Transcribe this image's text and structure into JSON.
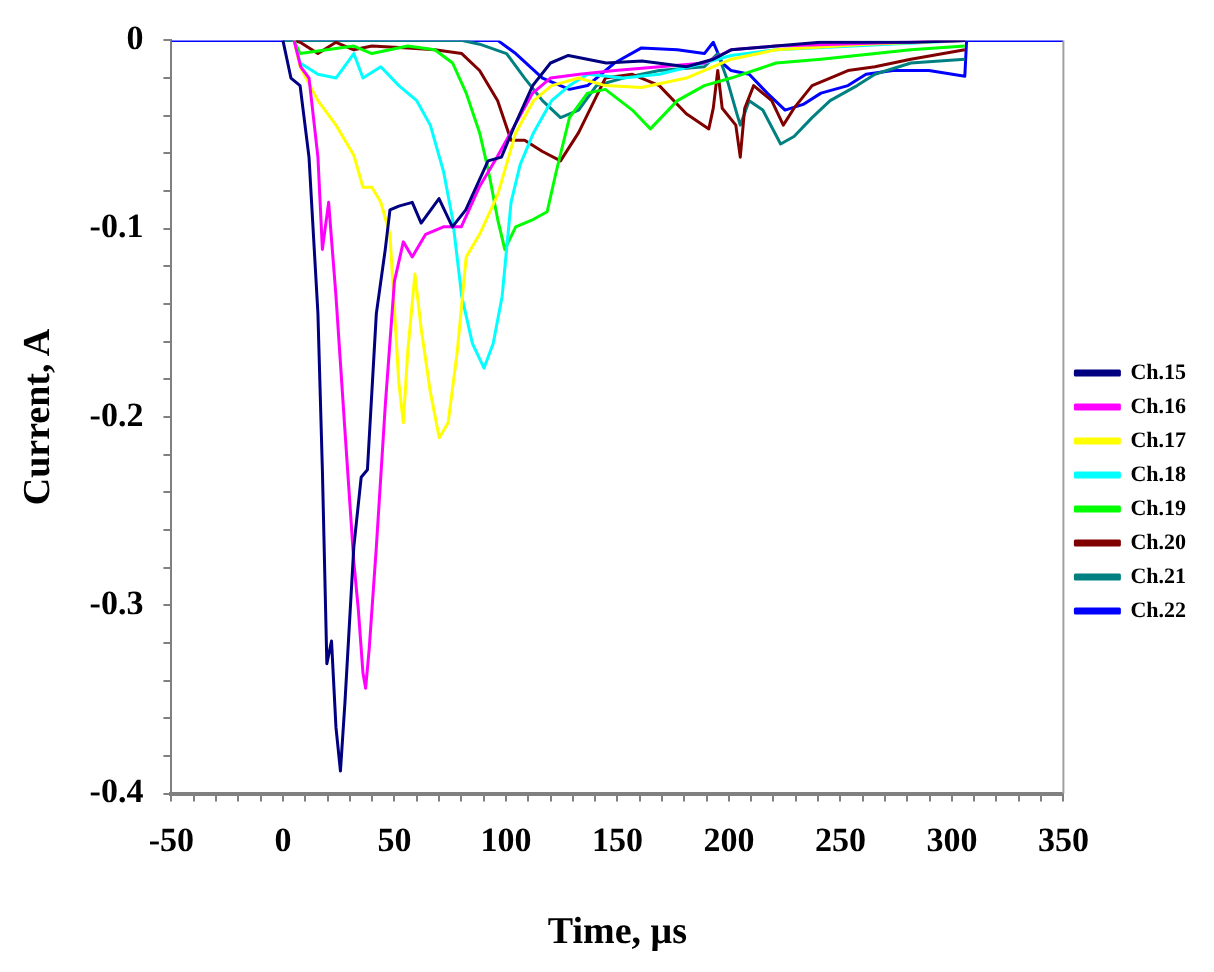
{
  "chart_data": {
    "type": "line",
    "xlabel": "Time, μs",
    "ylabel": "Current, A",
    "xlim": [
      -50,
      350
    ],
    "ylim": [
      -0.4,
      0
    ],
    "xticks": [
      -50,
      {
        "value": -40,
        "label": null
      },
      {
        "value": -30,
        "label": null
      },
      {
        "value": -20,
        "label": null
      },
      {
        "value": -10,
        "label": null
      },
      0,
      {
        "value": 10,
        "label": null
      },
      {
        "value": 20,
        "label": null
      },
      {
        "value": 30,
        "label": null
      },
      {
        "value": 40,
        "label": null
      },
      50,
      {
        "value": 60,
        "label": null
      },
      {
        "value": 70,
        "label": null
      },
      {
        "value": 80,
        "label": null
      },
      {
        "value": 90,
        "label": null
      },
      100,
      {
        "value": 110,
        "label": null
      },
      {
        "value": 120,
        "label": null
      },
      {
        "value": 130,
        "label": null
      },
      {
        "value": 140,
        "label": null
      },
      150,
      {
        "value": 160,
        "label": null
      },
      {
        "value": 170,
        "label": null
      },
      {
        "value": 180,
        "label": null
      },
      {
        "value": 190,
        "label": null
      },
      200,
      {
        "value": 210,
        "label": null
      },
      {
        "value": 220,
        "label": null
      },
      {
        "value": 230,
        "label": null
      },
      {
        "value": 240,
        "label": null
      },
      250,
      {
        "value": 260,
        "label": null
      },
      {
        "value": 270,
        "label": null
      },
      {
        "value": 280,
        "label": null
      },
      {
        "value": 290,
        "label": null
      },
      300,
      {
        "value": 310,
        "label": null
      },
      {
        "value": 320,
        "label": null
      },
      {
        "value": 330,
        "label": null
      },
      {
        "value": 340,
        "label": null
      },
      350
    ],
    "yticks": [
      -0.4,
      {
        "value": -0.38,
        "label": null
      },
      {
        "value": -0.36,
        "label": null
      },
      {
        "value": -0.34,
        "label": null
      },
      {
        "value": -0.32,
        "label": null
      },
      -0.3,
      {
        "value": -0.28,
        "label": null
      },
      {
        "value": -0.26,
        "label": null
      },
      {
        "value": -0.24,
        "label": null
      },
      {
        "value": -0.22,
        "label": null
      },
      -0.2,
      {
        "value": -0.18,
        "label": null
      },
      {
        "value": -0.16,
        "label": null
      },
      {
        "value": -0.14,
        "label": null
      },
      {
        "value": -0.12,
        "label": null
      },
      -0.1,
      {
        "value": -0.08,
        "label": null
      },
      {
        "value": -0.06,
        "label": null
      },
      {
        "value": -0.04,
        "label": null
      },
      {
        "value": -0.02,
        "label": null
      },
      0
    ],
    "grid": false,
    "legend": "right",
    "marker": "none",
    "line_style": "solid",
    "series": [
      {
        "name": "Ch.15",
        "color": "#000080",
        "x": [
          0,
          3.6,
          7.7,
          11.7,
          15.7,
          17.7,
          19.7,
          21.8,
          23.8,
          25.8,
          27.8,
          31.8,
          35.1,
          37.9,
          41.9,
          45.9,
          48,
          52,
          58,
          62,
          70,
          76,
          82,
          92,
          98,
          104,
          112,
          120,
          128,
          145,
          161,
          181,
          193,
          201,
          221,
          241,
          282,
          306
        ],
        "values": [
          0,
          -0.02,
          -0.024,
          -0.062,
          -0.145,
          -0.228,
          -0.331,
          -0.319,
          -0.365,
          -0.388,
          -0.352,
          -0.269,
          -0.232,
          -0.228,
          -0.145,
          -0.111,
          -0.09,
          -0.088,
          -0.086,
          -0.097,
          -0.084,
          -0.099,
          -0.09,
          -0.064,
          -0.062,
          -0.045,
          -0.024,
          -0.012,
          -0.008,
          -0.012,
          -0.011,
          -0.014,
          -0.01,
          -0.005,
          -0.003,
          -0.001,
          -0.001,
          0
        ]
      },
      {
        "name": "Ch.16",
        "color": "#ff00ff",
        "x": [
          5,
          8,
          11.7,
          15.7,
          17.7,
          20.5,
          23.8,
          27.8,
          31.8,
          33.8,
          35.9,
          37.1,
          38.7,
          41.9,
          45.9,
          50,
          54,
          58,
          64,
          72,
          80,
          88,
          96,
          104,
          112,
          120,
          133,
          149,
          169,
          189,
          201,
          221,
          306
        ],
        "values": [
          0,
          -0.014,
          -0.02,
          -0.062,
          -0.111,
          -0.086,
          -0.136,
          -0.207,
          -0.277,
          -0.302,
          -0.336,
          -0.344,
          -0.323,
          -0.269,
          -0.194,
          -0.128,
          -0.107,
          -0.115,
          -0.103,
          -0.099,
          -0.099,
          -0.078,
          -0.062,
          -0.045,
          -0.028,
          -0.02,
          -0.018,
          -0.016,
          -0.014,
          -0.012,
          -0.005,
          -0.003,
          0
        ]
      },
      {
        "name": "Ch.17",
        "color": "#ffff00",
        "x": [
          5,
          7.7,
          15.7,
          23.8,
          31.8,
          35.9,
          39.9,
          43.9,
          48,
          52,
          54,
          56,
          59.2,
          62,
          66,
          70.1,
          74.1,
          78.2,
          82.2,
          88.2,
          96.3,
          104.4,
          112.4,
          120.5,
          132.6,
          144.6,
          160.8,
          180.9,
          201,
          221.2,
          261.5,
          305.8
        ],
        "values": [
          0,
          -0.014,
          -0.032,
          -0.045,
          -0.061,
          -0.078,
          -0.078,
          -0.086,
          -0.103,
          -0.182,
          -0.203,
          -0.165,
          -0.124,
          -0.153,
          -0.186,
          -0.211,
          -0.203,
          -0.165,
          -0.115,
          -0.103,
          -0.082,
          -0.049,
          -0.032,
          -0.024,
          -0.02,
          -0.024,
          -0.025,
          -0.02,
          -0.01,
          -0.005,
          -0.002,
          0
        ]
      },
      {
        "name": "Ch.18",
        "color": "#00ffff",
        "x": [
          5,
          7.7,
          15.7,
          23.8,
          31.8,
          35.9,
          43.9,
          52,
          60,
          66.1,
          72.1,
          76.1,
          80.2,
          85,
          90.2,
          94.3,
          98.3,
          102.3,
          106.4,
          112.4,
          120.5,
          128.5,
          136.6,
          152.7,
          168.8,
          189,
          201,
          221.2,
          305.8
        ],
        "values": [
          0,
          -0.012,
          -0.018,
          -0.02,
          -0.007,
          -0.02,
          -0.014,
          -0.024,
          -0.032,
          -0.045,
          -0.07,
          -0.095,
          -0.136,
          -0.161,
          -0.174,
          -0.161,
          -0.136,
          -0.086,
          -0.066,
          -0.049,
          -0.032,
          -0.024,
          -0.018,
          -0.02,
          -0.018,
          -0.012,
          -0.008,
          -0.005,
          0
        ]
      },
      {
        "name": "Ch.19",
        "color": "#00ff00",
        "x": [
          5,
          7.7,
          19.7,
          31.8,
          39.9,
          56,
          68.1,
          76.1,
          82.2,
          88.2,
          92.3,
          96.3,
          99.5,
          104.4,
          112.4,
          118.5,
          122.5,
          128.5,
          136.6,
          144.6,
          156.7,
          164.8,
          176.9,
          189,
          201,
          221.2,
          241.3,
          281.6,
          305.8
        ],
        "values": [
          0,
          -0.007,
          -0.005,
          -0.003,
          -0.007,
          -0.003,
          -0.005,
          -0.012,
          -0.028,
          -0.049,
          -0.07,
          -0.095,
          -0.111,
          -0.099,
          -0.095,
          -0.091,
          -0.07,
          -0.041,
          -0.028,
          -0.026,
          -0.037,
          -0.047,
          -0.032,
          -0.024,
          -0.02,
          -0.012,
          -0.01,
          -0.005,
          -0.003
        ]
      },
      {
        "name": "Ch.20",
        "color": "#800000",
        "x": [
          5,
          7.7,
          15.7,
          23.8,
          31.8,
          39.9,
          56,
          68.1,
          80.2,
          88.2,
          96.3,
          102.3,
          108.4,
          116.4,
          124.5,
          132.6,
          144.6,
          156.7,
          168.8,
          180.9,
          191,
          193,
          195,
          197,
          203.1,
          205.1,
          207.1,
          211.1,
          219.2,
          224.4,
          229.2,
          237.3,
          245.4,
          253.4,
          265.5,
          281.6,
          305.8
        ],
        "values": [
          0,
          -0.001,
          -0.007,
          -0.001,
          -0.005,
          -0.003,
          -0.004,
          -0.005,
          -0.007,
          -0.016,
          -0.032,
          -0.053,
          -0.053,
          -0.059,
          -0.064,
          -0.049,
          -0.02,
          -0.018,
          -0.024,
          -0.039,
          -0.047,
          -0.036,
          -0.016,
          -0.036,
          -0.045,
          -0.062,
          -0.036,
          -0.024,
          -0.032,
          -0.045,
          -0.036,
          -0.024,
          -0.02,
          -0.016,
          -0.014,
          -0.01,
          -0.005
        ]
      },
      {
        "name": "Ch.21",
        "color": "#008080",
        "x": [
          0,
          80,
          88.2,
          100.3,
          108.4,
          116.4,
          124.5,
          132.6,
          140.6,
          152.7,
          168.8,
          189,
          195,
          199,
          203.1,
          205.1,
          209.1,
          215.2,
          223.2,
          229.2,
          237.3,
          245.4,
          257.5,
          265.5,
          281.6,
          305.8
        ],
        "values": [
          0,
          0,
          -0.002,
          -0.007,
          -0.02,
          -0.032,
          -0.041,
          -0.037,
          -0.024,
          -0.02,
          -0.016,
          -0.014,
          -0.007,
          -0.02,
          -0.037,
          -0.045,
          -0.032,
          -0.037,
          -0.055,
          -0.051,
          -0.041,
          -0.032,
          -0.024,
          -0.018,
          -0.012,
          -0.01
        ]
      },
      {
        "name": "Ch.22",
        "color": "#0000ff",
        "x": [
          -50,
          96.3,
          104.4,
          116.4,
          128.5,
          136.6,
          148.7,
          160.8,
          176.9,
          189,
          193,
          197,
          201,
          209.1,
          217.2,
          225.2,
          233.3,
          241.3,
          253.4,
          261.5,
          273.6,
          289.7,
          305.8,
          306.6,
          350
        ],
        "values": [
          0,
          0,
          -0.007,
          -0.02,
          -0.026,
          -0.024,
          -0.012,
          -0.004,
          -0.005,
          -0.007,
          -0.001,
          -0.012,
          -0.016,
          -0.018,
          -0.028,
          -0.037,
          -0.034,
          -0.028,
          -0.024,
          -0.018,
          -0.016,
          -0.016,
          -0.019,
          0,
          0
        ]
      }
    ]
  }
}
